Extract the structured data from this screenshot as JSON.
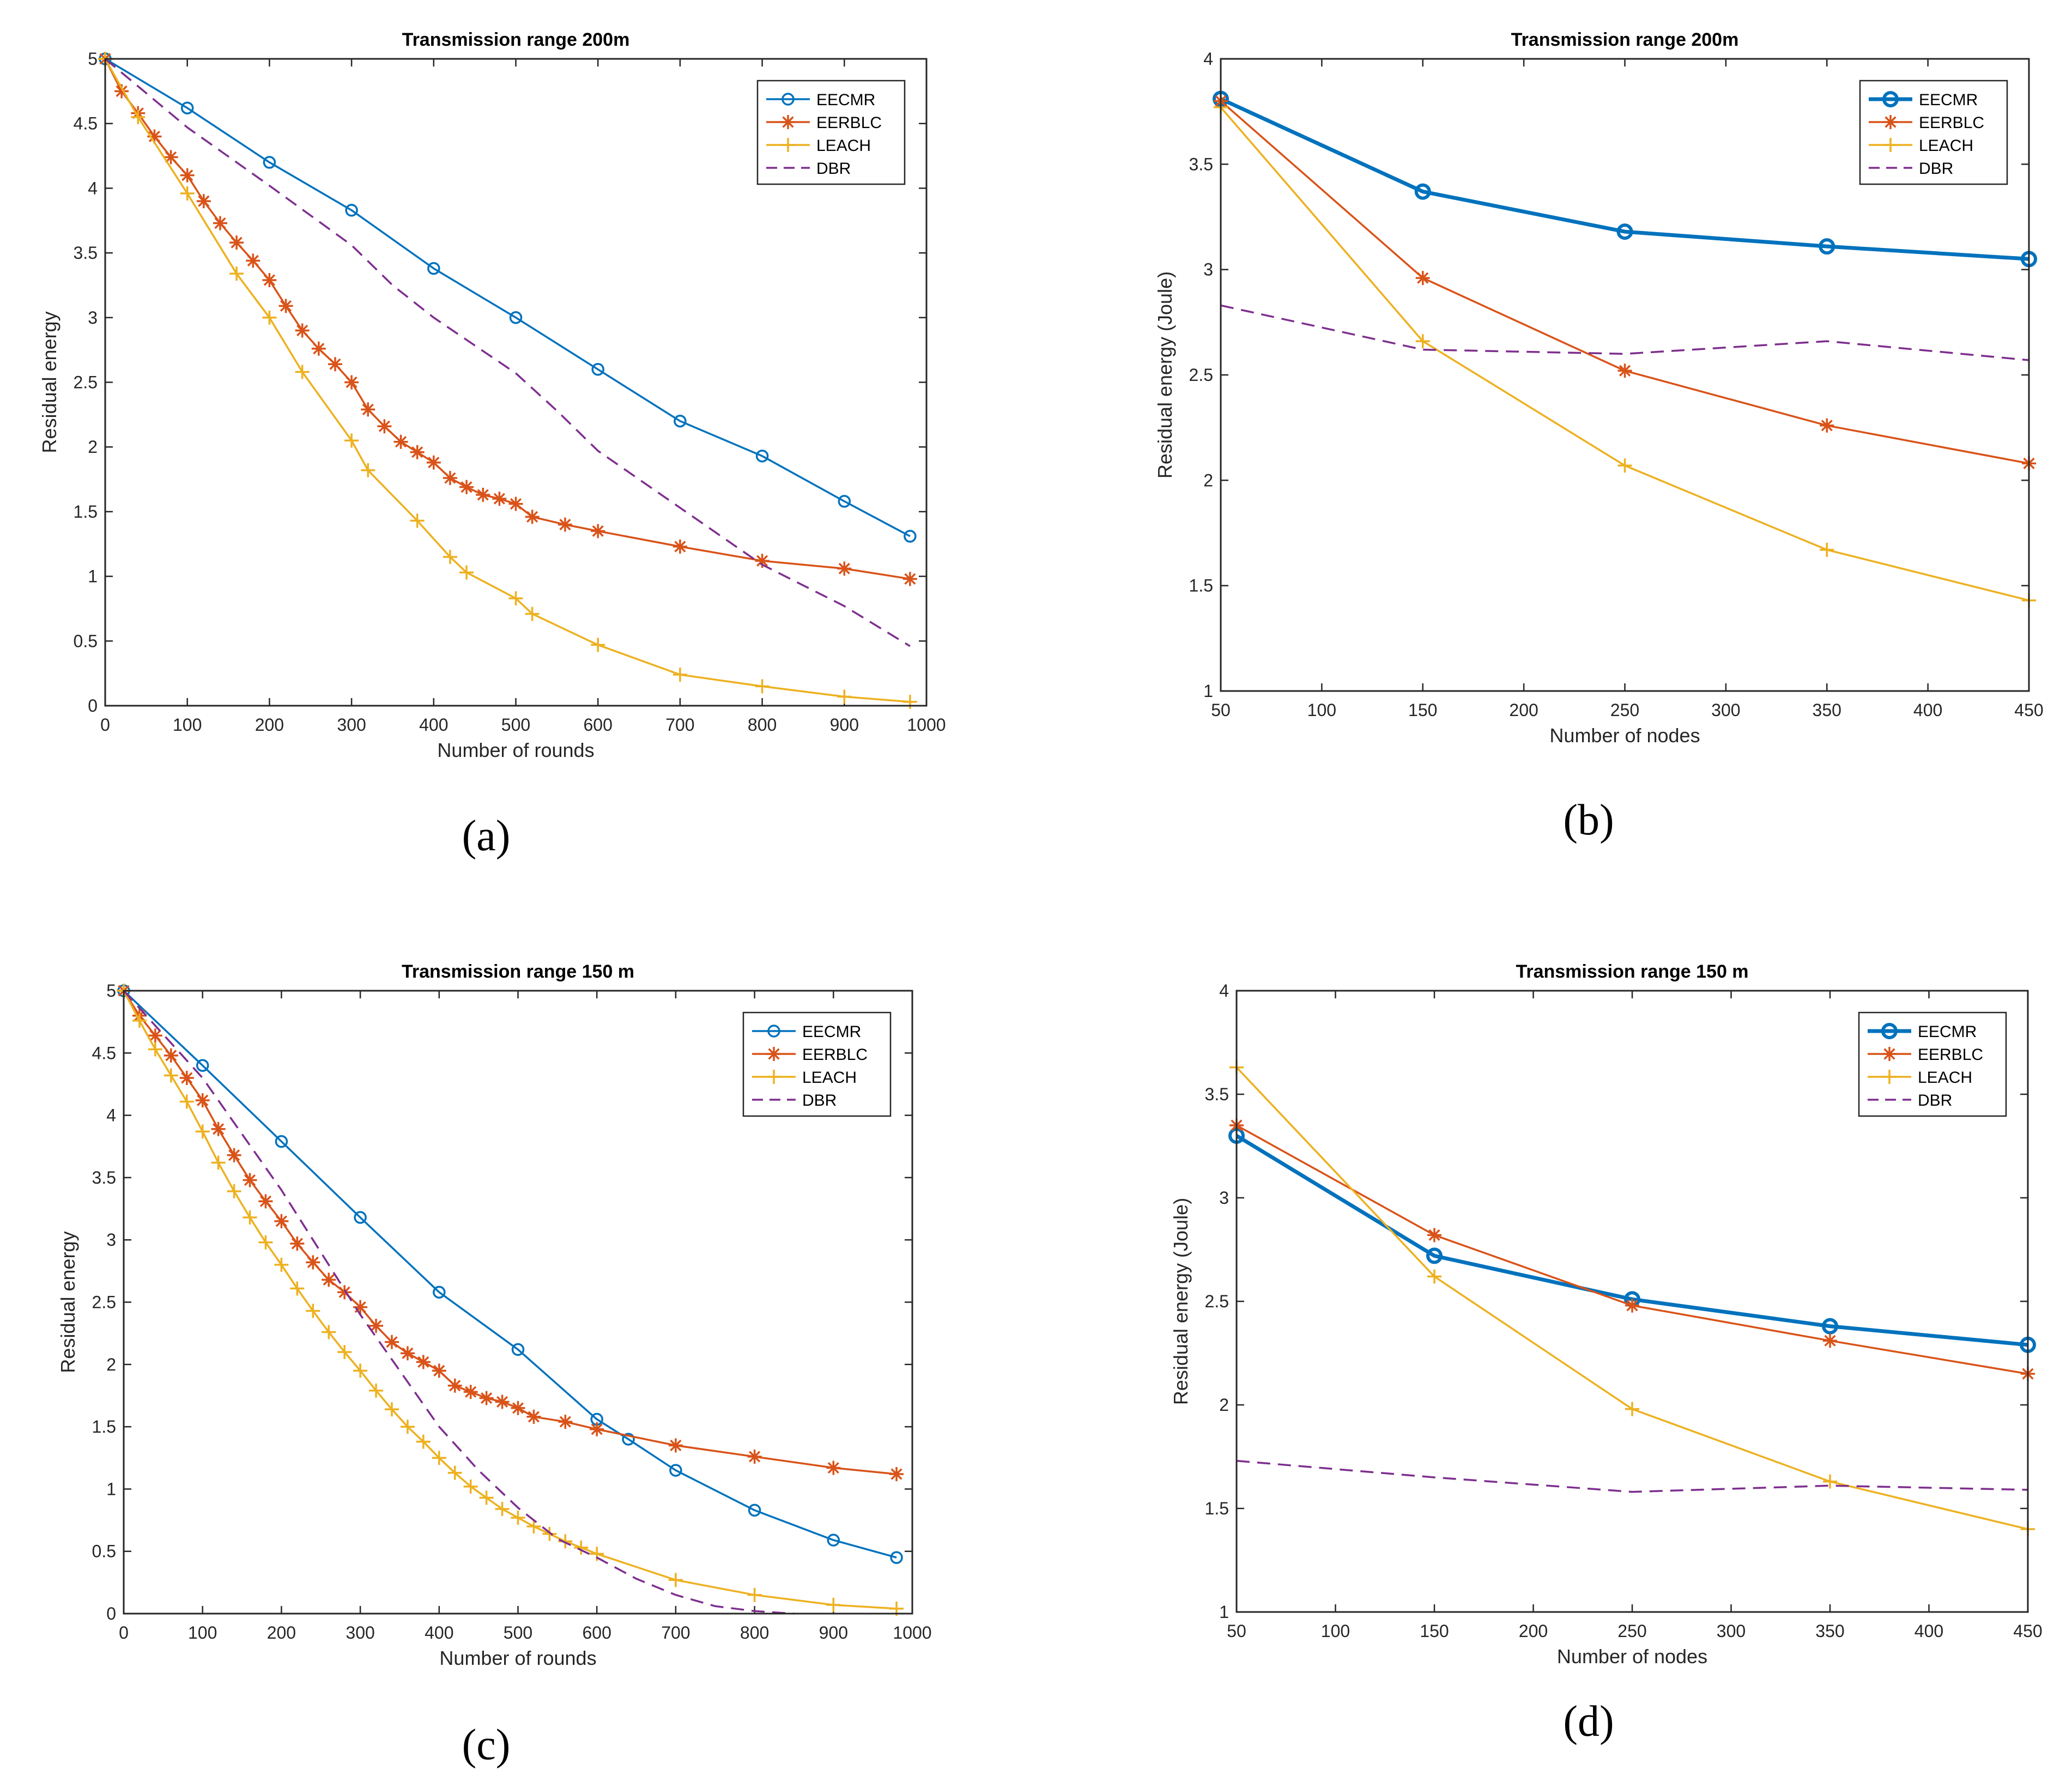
{
  "figure": {
    "panel_labels": [
      "(a)",
      "(b)",
      "(c)",
      "(d)"
    ]
  },
  "colors": {
    "EECMR": "#0072BD",
    "EERBLC": "#D95319",
    "LEACH": "#EDB120",
    "DBR": "#7E2F8E"
  },
  "chart_data": [
    {
      "id": "a",
      "type": "line",
      "title": "Transmission range 200m",
      "xlabel": "Number of rounds",
      "ylabel": "Residual energy",
      "xlim": [
        0,
        1000
      ],
      "ylim": [
        0,
        5
      ],
      "xticks": [
        0,
        100,
        200,
        300,
        400,
        500,
        600,
        700,
        800,
        900,
        1000
      ],
      "yticks": [
        0,
        0.5,
        1,
        1.5,
        2,
        2.5,
        3,
        3.5,
        4,
        4.5,
        5
      ],
      "legend": "top-right",
      "series": [
        {
          "name": "EECMR",
          "marker": "circle",
          "bold": false,
          "x": [
            0,
            100,
            200,
            300,
            400,
            500,
            600,
            700,
            800,
            900,
            980
          ],
          "y": [
            5,
            4.62,
            4.2,
            3.83,
            3.38,
            3.0,
            2.6,
            2.2,
            1.93,
            1.58,
            1.31
          ]
        },
        {
          "name": "EERBLC",
          "marker": "star",
          "bold": false,
          "x": [
            0,
            20,
            40,
            60,
            80,
            100,
            120,
            140,
            160,
            180,
            200,
            220,
            240,
            260,
            280,
            300,
            320,
            340,
            360,
            380,
            400,
            420,
            440,
            460,
            480,
            500,
            520,
            560,
            600,
            700,
            800,
            900,
            980
          ],
          "y": [
            5,
            4.75,
            4.58,
            4.4,
            4.24,
            4.1,
            3.9,
            3.73,
            3.58,
            3.44,
            3.29,
            3.09,
            2.9,
            2.76,
            2.64,
            2.5,
            2.29,
            2.16,
            2.04,
            1.96,
            1.88,
            1.76,
            1.69,
            1.63,
            1.6,
            1.56,
            1.46,
            1.4,
            1.35,
            1.23,
            1.12,
            1.06,
            0.98
          ]
        },
        {
          "name": "LEACH",
          "marker": "plus",
          "bold": false,
          "x": [
            0,
            40,
            100,
            160,
            200,
            240,
            300,
            320,
            380,
            420,
            440,
            500,
            520,
            600,
            700,
            800,
            900,
            980
          ],
          "y": [
            5,
            4.55,
            3.96,
            3.34,
            3.0,
            2.58,
            2.05,
            1.82,
            1.43,
            1.15,
            1.03,
            0.83,
            0.71,
            0.47,
            0.24,
            0.15,
            0.07,
            0.03
          ]
        },
        {
          "name": "DBR",
          "marker": "none",
          "dashed": true,
          "x": [
            0,
            100,
            200,
            300,
            350,
            400,
            500,
            550,
            600,
            700,
            800,
            900,
            980
          ],
          "y": [
            5,
            4.47,
            4.02,
            3.56,
            3.25,
            3.0,
            2.57,
            2.28,
            1.97,
            1.53,
            1.09,
            0.77,
            0.46
          ]
        }
      ]
    },
    {
      "id": "b",
      "type": "line",
      "title": "Transmission range 200m",
      "xlabel": "Number of nodes",
      "ylabel": "Residual energy (Joule)",
      "xlim": [
        50,
        450
      ],
      "ylim": [
        1,
        4
      ],
      "xticks": [
        50,
        100,
        150,
        200,
        250,
        300,
        350,
        400,
        450
      ],
      "yticks": [
        1,
        1.5,
        2,
        2.5,
        3,
        3.5,
        4
      ],
      "legend": "top-right",
      "series": [
        {
          "name": "EECMR",
          "marker": "circle",
          "bold": true,
          "x": [
            50,
            150,
            250,
            350,
            450
          ],
          "y": [
            3.81,
            3.37,
            3.18,
            3.11,
            3.05
          ]
        },
        {
          "name": "EERBLC",
          "marker": "star",
          "bold": false,
          "x": [
            50,
            150,
            250,
            350,
            450
          ],
          "y": [
            3.8,
            2.96,
            2.52,
            2.26,
            2.08
          ]
        },
        {
          "name": "LEACH",
          "marker": "plus",
          "bold": false,
          "x": [
            50,
            150,
            250,
            350,
            450
          ],
          "y": [
            3.77,
            2.66,
            2.07,
            1.67,
            1.43
          ]
        },
        {
          "name": "DBR",
          "marker": "none",
          "dashed": true,
          "x": [
            50,
            150,
            250,
            350,
            450
          ],
          "y": [
            2.83,
            2.62,
            2.6,
            2.66,
            2.57
          ]
        }
      ]
    },
    {
      "id": "c",
      "type": "line",
      "title": "Transmission range 150 m",
      "xlabel": "Number of rounds",
      "ylabel": "Residual energy",
      "xlim": [
        0,
        1000
      ],
      "ylim": [
        0,
        5
      ],
      "xticks": [
        0,
        100,
        200,
        300,
        400,
        500,
        600,
        700,
        800,
        900,
        1000
      ],
      "yticks": [
        0,
        0.5,
        1,
        1.5,
        2,
        2.5,
        3,
        3.5,
        4,
        4.5,
        5
      ],
      "legend": "top-right",
      "series": [
        {
          "name": "EECMR",
          "marker": "circle",
          "bold": false,
          "x": [
            0,
            100,
            200,
            300,
            400,
            500,
            600,
            640,
            700,
            800,
            900,
            980
          ],
          "y": [
            5,
            4.4,
            3.79,
            3.18,
            2.58,
            2.12,
            1.56,
            1.4,
            1.15,
            0.83,
            0.59,
            0.45
          ]
        },
        {
          "name": "EERBLC",
          "marker": "star",
          "bold": false,
          "x": [
            0,
            20,
            40,
            60,
            80,
            100,
            120,
            140,
            160,
            180,
            200,
            220,
            240,
            260,
            280,
            300,
            320,
            340,
            360,
            380,
            400,
            420,
            440,
            460,
            480,
            500,
            520,
            560,
            600,
            700,
            800,
            900,
            980
          ],
          "y": [
            5,
            4.8,
            4.64,
            4.48,
            4.3,
            4.12,
            3.89,
            3.68,
            3.48,
            3.31,
            3.15,
            2.97,
            2.82,
            2.68,
            2.58,
            2.46,
            2.31,
            2.18,
            2.09,
            2.02,
            1.95,
            1.83,
            1.78,
            1.73,
            1.7,
            1.65,
            1.58,
            1.54,
            1.48,
            1.35,
            1.26,
            1.17,
            1.12
          ]
        },
        {
          "name": "LEACH",
          "marker": "plus",
          "bold": false,
          "x": [
            0,
            20,
            40,
            60,
            80,
            100,
            120,
            140,
            160,
            180,
            200,
            220,
            240,
            260,
            280,
            300,
            320,
            340,
            360,
            380,
            400,
            420,
            440,
            460,
            480,
            500,
            520,
            540,
            560,
            580,
            600,
            700,
            800,
            900,
            980
          ],
          "y": [
            5,
            4.76,
            4.53,
            4.32,
            4.11,
            3.87,
            3.62,
            3.39,
            3.18,
            2.98,
            2.8,
            2.61,
            2.43,
            2.26,
            2.1,
            1.95,
            1.79,
            1.64,
            1.5,
            1.38,
            1.25,
            1.13,
            1.02,
            0.93,
            0.84,
            0.77,
            0.7,
            0.64,
            0.58,
            0.53,
            0.48,
            0.27,
            0.15,
            0.07,
            0.04
          ]
        },
        {
          "name": "DBR",
          "marker": "none",
          "dashed": true,
          "x": [
            0,
            100,
            150,
            200,
            250,
            300,
            350,
            400,
            450,
            500,
            550,
            600,
            650,
            700,
            750,
            800,
            850
          ],
          "y": [
            5,
            4.3,
            3.85,
            3.4,
            2.9,
            2.4,
            1.95,
            1.5,
            1.15,
            0.85,
            0.6,
            0.45,
            0.28,
            0.15,
            0.06,
            0.02,
            0.0
          ]
        }
      ]
    },
    {
      "id": "d",
      "type": "line",
      "title": "Transmission range 150 m",
      "xlabel": "Number of nodes",
      "ylabel": "Residual energy (Joule)",
      "xlim": [
        50,
        450
      ],
      "ylim": [
        1,
        4
      ],
      "xticks": [
        50,
        100,
        150,
        200,
        250,
        300,
        350,
        400,
        450
      ],
      "yticks": [
        1,
        1.5,
        2,
        2.5,
        3,
        3.5,
        4
      ],
      "legend": "top-right",
      "series": [
        {
          "name": "EECMR",
          "marker": "circle",
          "bold": true,
          "x": [
            50,
            150,
            250,
            350,
            450
          ],
          "y": [
            3.3,
            2.72,
            2.51,
            2.38,
            2.29
          ]
        },
        {
          "name": "EERBLC",
          "marker": "star",
          "bold": false,
          "x": [
            50,
            150,
            250,
            350,
            450
          ],
          "y": [
            3.35,
            2.82,
            2.48,
            2.31,
            2.15
          ]
        },
        {
          "name": "LEACH",
          "marker": "plus",
          "bold": false,
          "x": [
            50,
            150,
            250,
            350,
            450
          ],
          "y": [
            3.63,
            2.62,
            1.98,
            1.63,
            1.4
          ]
        },
        {
          "name": "DBR",
          "marker": "none",
          "dashed": true,
          "x": [
            50,
            150,
            250,
            350,
            450
          ],
          "y": [
            1.73,
            1.65,
            1.58,
            1.61,
            1.59
          ]
        }
      ]
    }
  ]
}
